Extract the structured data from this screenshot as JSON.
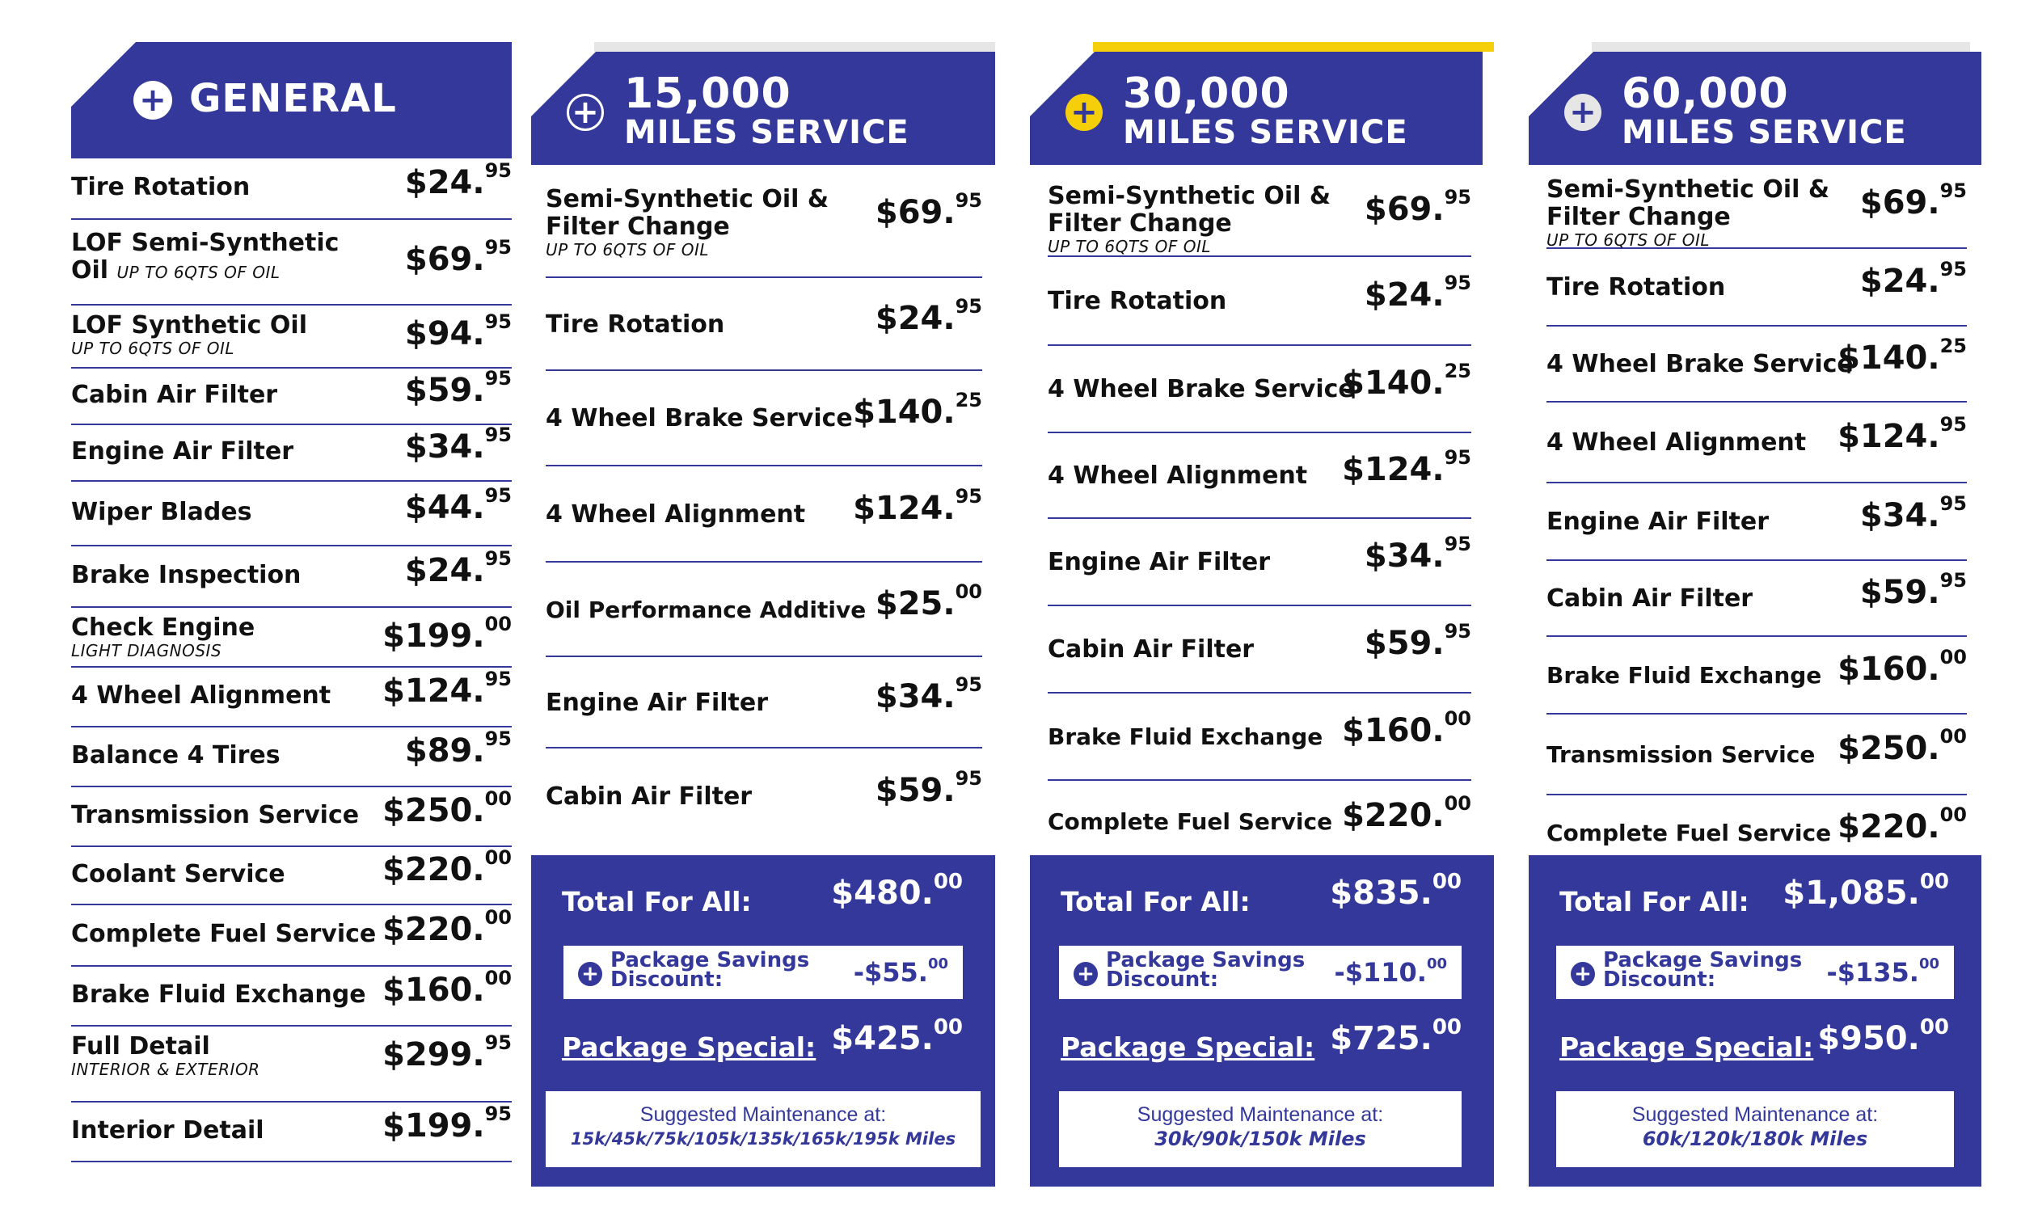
{
  "general": {
    "title": "GENERAL",
    "icon": "plus-circle-icon",
    "rows": [
      {
        "name": "Tire Rotation",
        "note": "",
        "dollars": "$24.",
        "cents": "95"
      },
      {
        "name": "LOF Semi-Synthetic Oil",
        "note": "UP TO 6QTS OF OIL",
        "dollars": "$69.",
        "cents": "95"
      },
      {
        "name": "LOF Synthetic Oil",
        "note": "UP TO 6QTS OF OIL",
        "dollars": "$94.",
        "cents": "95"
      },
      {
        "name": "Cabin Air Filter",
        "note": "",
        "dollars": "$59.",
        "cents": "95"
      },
      {
        "name": "Engine Air Filter",
        "note": "",
        "dollars": "$34.",
        "cents": "95"
      },
      {
        "name": "Wiper Blades",
        "note": "",
        "dollars": "$44.",
        "cents": "95"
      },
      {
        "name": "Brake Inspection",
        "note": "",
        "dollars": "$24.",
        "cents": "95"
      },
      {
        "name": "Check Engine",
        "note": "LIGHT DIAGNOSIS",
        "dollars": "$199.",
        "cents": "00"
      },
      {
        "name": "4 Wheel Alignment",
        "note": "",
        "dollars": "$124.",
        "cents": "95"
      },
      {
        "name": "Balance 4 Tires",
        "note": "",
        "dollars": "$89.",
        "cents": "95"
      },
      {
        "name": "Transmission Service",
        "note": "",
        "dollars": "$250.",
        "cents": "00"
      },
      {
        "name": "Coolant Service",
        "note": "",
        "dollars": "$220.",
        "cents": "00"
      },
      {
        "name": "Complete Fuel Service",
        "note": "",
        "dollars": "$220.",
        "cents": "00"
      },
      {
        "name": "Brake Fluid Exchange",
        "note": "",
        "dollars": "$160.",
        "cents": "00"
      },
      {
        "name": "Full Detail",
        "note": "INTERIOR & EXTERIOR",
        "dollars": "$299.",
        "cents": "95"
      },
      {
        "name": "Interior Detail",
        "note": "",
        "dollars": "$199.",
        "cents": "95"
      }
    ]
  },
  "packages": [
    {
      "number": "15,000",
      "subtitle": "MILES SERVICE",
      "accent_color": "#e6e6e6",
      "icon_color": "#ffffff",
      "rows": [
        {
          "name": "Semi-Synthetic Oil & Filter Change",
          "note": "UP TO 6QTS OF OIL",
          "dollars": "$69.",
          "cents": "95"
        },
        {
          "name": "Tire Rotation",
          "note": "",
          "dollars": "$24.",
          "cents": "95"
        },
        {
          "name": "4 Wheel Brake Service",
          "note": "",
          "dollars": "$140.",
          "cents": "25"
        },
        {
          "name": "4 Wheel Alignment",
          "note": "",
          "dollars": "$124.",
          "cents": "95"
        },
        {
          "name": "Oil Performance Additive",
          "note": "",
          "dollars": "$25.",
          "cents": "00"
        },
        {
          "name": "Engine Air Filter",
          "note": "",
          "dollars": "$34.",
          "cents": "95"
        },
        {
          "name": "Cabin Air Filter",
          "note": "",
          "dollars": "$59.",
          "cents": "95"
        }
      ],
      "total_label": "Total For All:",
      "total_dollars": "$480.",
      "total_cents": "00",
      "savings_label": "Package Savings Discount:",
      "savings_dollars": "-$55.",
      "savings_cents": "00",
      "special_label": "Package Special:",
      "special_dollars": "$425.",
      "special_cents": "00",
      "suggest_label": "Suggested Maintenance at:",
      "suggest_miles": "15k/45k/75k/105k/135k/165k/195k Miles"
    },
    {
      "number": "30,000",
      "subtitle": "MILES SERVICE",
      "accent_color": "#f5cf0a",
      "icon_color": "#f5cf0a",
      "rows": [
        {
          "name": "Semi-Synthetic Oil & Filter Change",
          "note": "UP TO 6QTS OF OIL",
          "dollars": "$69.",
          "cents": "95"
        },
        {
          "name": "Tire Rotation",
          "note": "",
          "dollars": "$24.",
          "cents": "95"
        },
        {
          "name": "4 Wheel Brake Service",
          "note": "",
          "dollars": "$140.",
          "cents": "25"
        },
        {
          "name": "4 Wheel Alignment",
          "note": "",
          "dollars": "$124.",
          "cents": "95"
        },
        {
          "name": "Engine Air Filter",
          "note": "",
          "dollars": "$34.",
          "cents": "95"
        },
        {
          "name": "Cabin Air Filter",
          "note": "",
          "dollars": "$59.",
          "cents": "95"
        },
        {
          "name": "Brake Fluid Exchange",
          "note": "",
          "dollars": "$160.",
          "cents": "00"
        },
        {
          "name": "Complete Fuel Service",
          "note": "",
          "dollars": "$220.",
          "cents": "00"
        }
      ],
      "total_label": "Total For All:",
      "total_dollars": "$835.",
      "total_cents": "00",
      "savings_label": "Package Savings Discount:",
      "savings_dollars": "-$110.",
      "savings_cents": "00",
      "special_label": "Package Special:",
      "special_dollars": "$725.",
      "special_cents": "00",
      "suggest_label": "Suggested Maintenance at:",
      "suggest_miles": "30k/90k/150k Miles"
    },
    {
      "number": "60,000",
      "subtitle": "MILES SERVICE",
      "accent_color": "#e6e6e6",
      "icon_color": "#e6e6e6",
      "rows": [
        {
          "name": "Semi-Synthetic Oil & Filter Change",
          "note": "UP TO 6QTS OF OIL",
          "dollars": "$69.",
          "cents": "95"
        },
        {
          "name": "Tire Rotation",
          "note": "",
          "dollars": "$24.",
          "cents": "95"
        },
        {
          "name": "4 Wheel Brake Service",
          "note": "",
          "dollars": "$140.",
          "cents": "25"
        },
        {
          "name": "4 Wheel Alignment",
          "note": "",
          "dollars": "$124.",
          "cents": "95"
        },
        {
          "name": "Engine Air Filter",
          "note": "",
          "dollars": "$34.",
          "cents": "95"
        },
        {
          "name": "Cabin Air Filter",
          "note": "",
          "dollars": "$59.",
          "cents": "95"
        },
        {
          "name": "Brake Fluid Exchange",
          "note": "",
          "dollars": "$160.",
          "cents": "00"
        },
        {
          "name": "Transmission Service",
          "note": "",
          "dollars": "$250.",
          "cents": "00"
        },
        {
          "name": "Complete Fuel Service",
          "note": "",
          "dollars": "$220.",
          "cents": "00"
        }
      ],
      "total_label": "Total For All:",
      "total_dollars": "$1,085.",
      "total_cents": "00",
      "savings_label": "Package Savings Discount:",
      "savings_dollars": "-$135.",
      "savings_cents": "00",
      "special_label": "Package Special:",
      "special_dollars": "$950.",
      "special_cents": "00",
      "suggest_label": "Suggested Maintenance at:",
      "suggest_miles": "60k/120k/180k Miles"
    }
  ],
  "theme": {
    "brand_blue": "#33389a",
    "accent_yellow": "#f5cf0a",
    "accent_grey": "#e6e6e6"
  }
}
